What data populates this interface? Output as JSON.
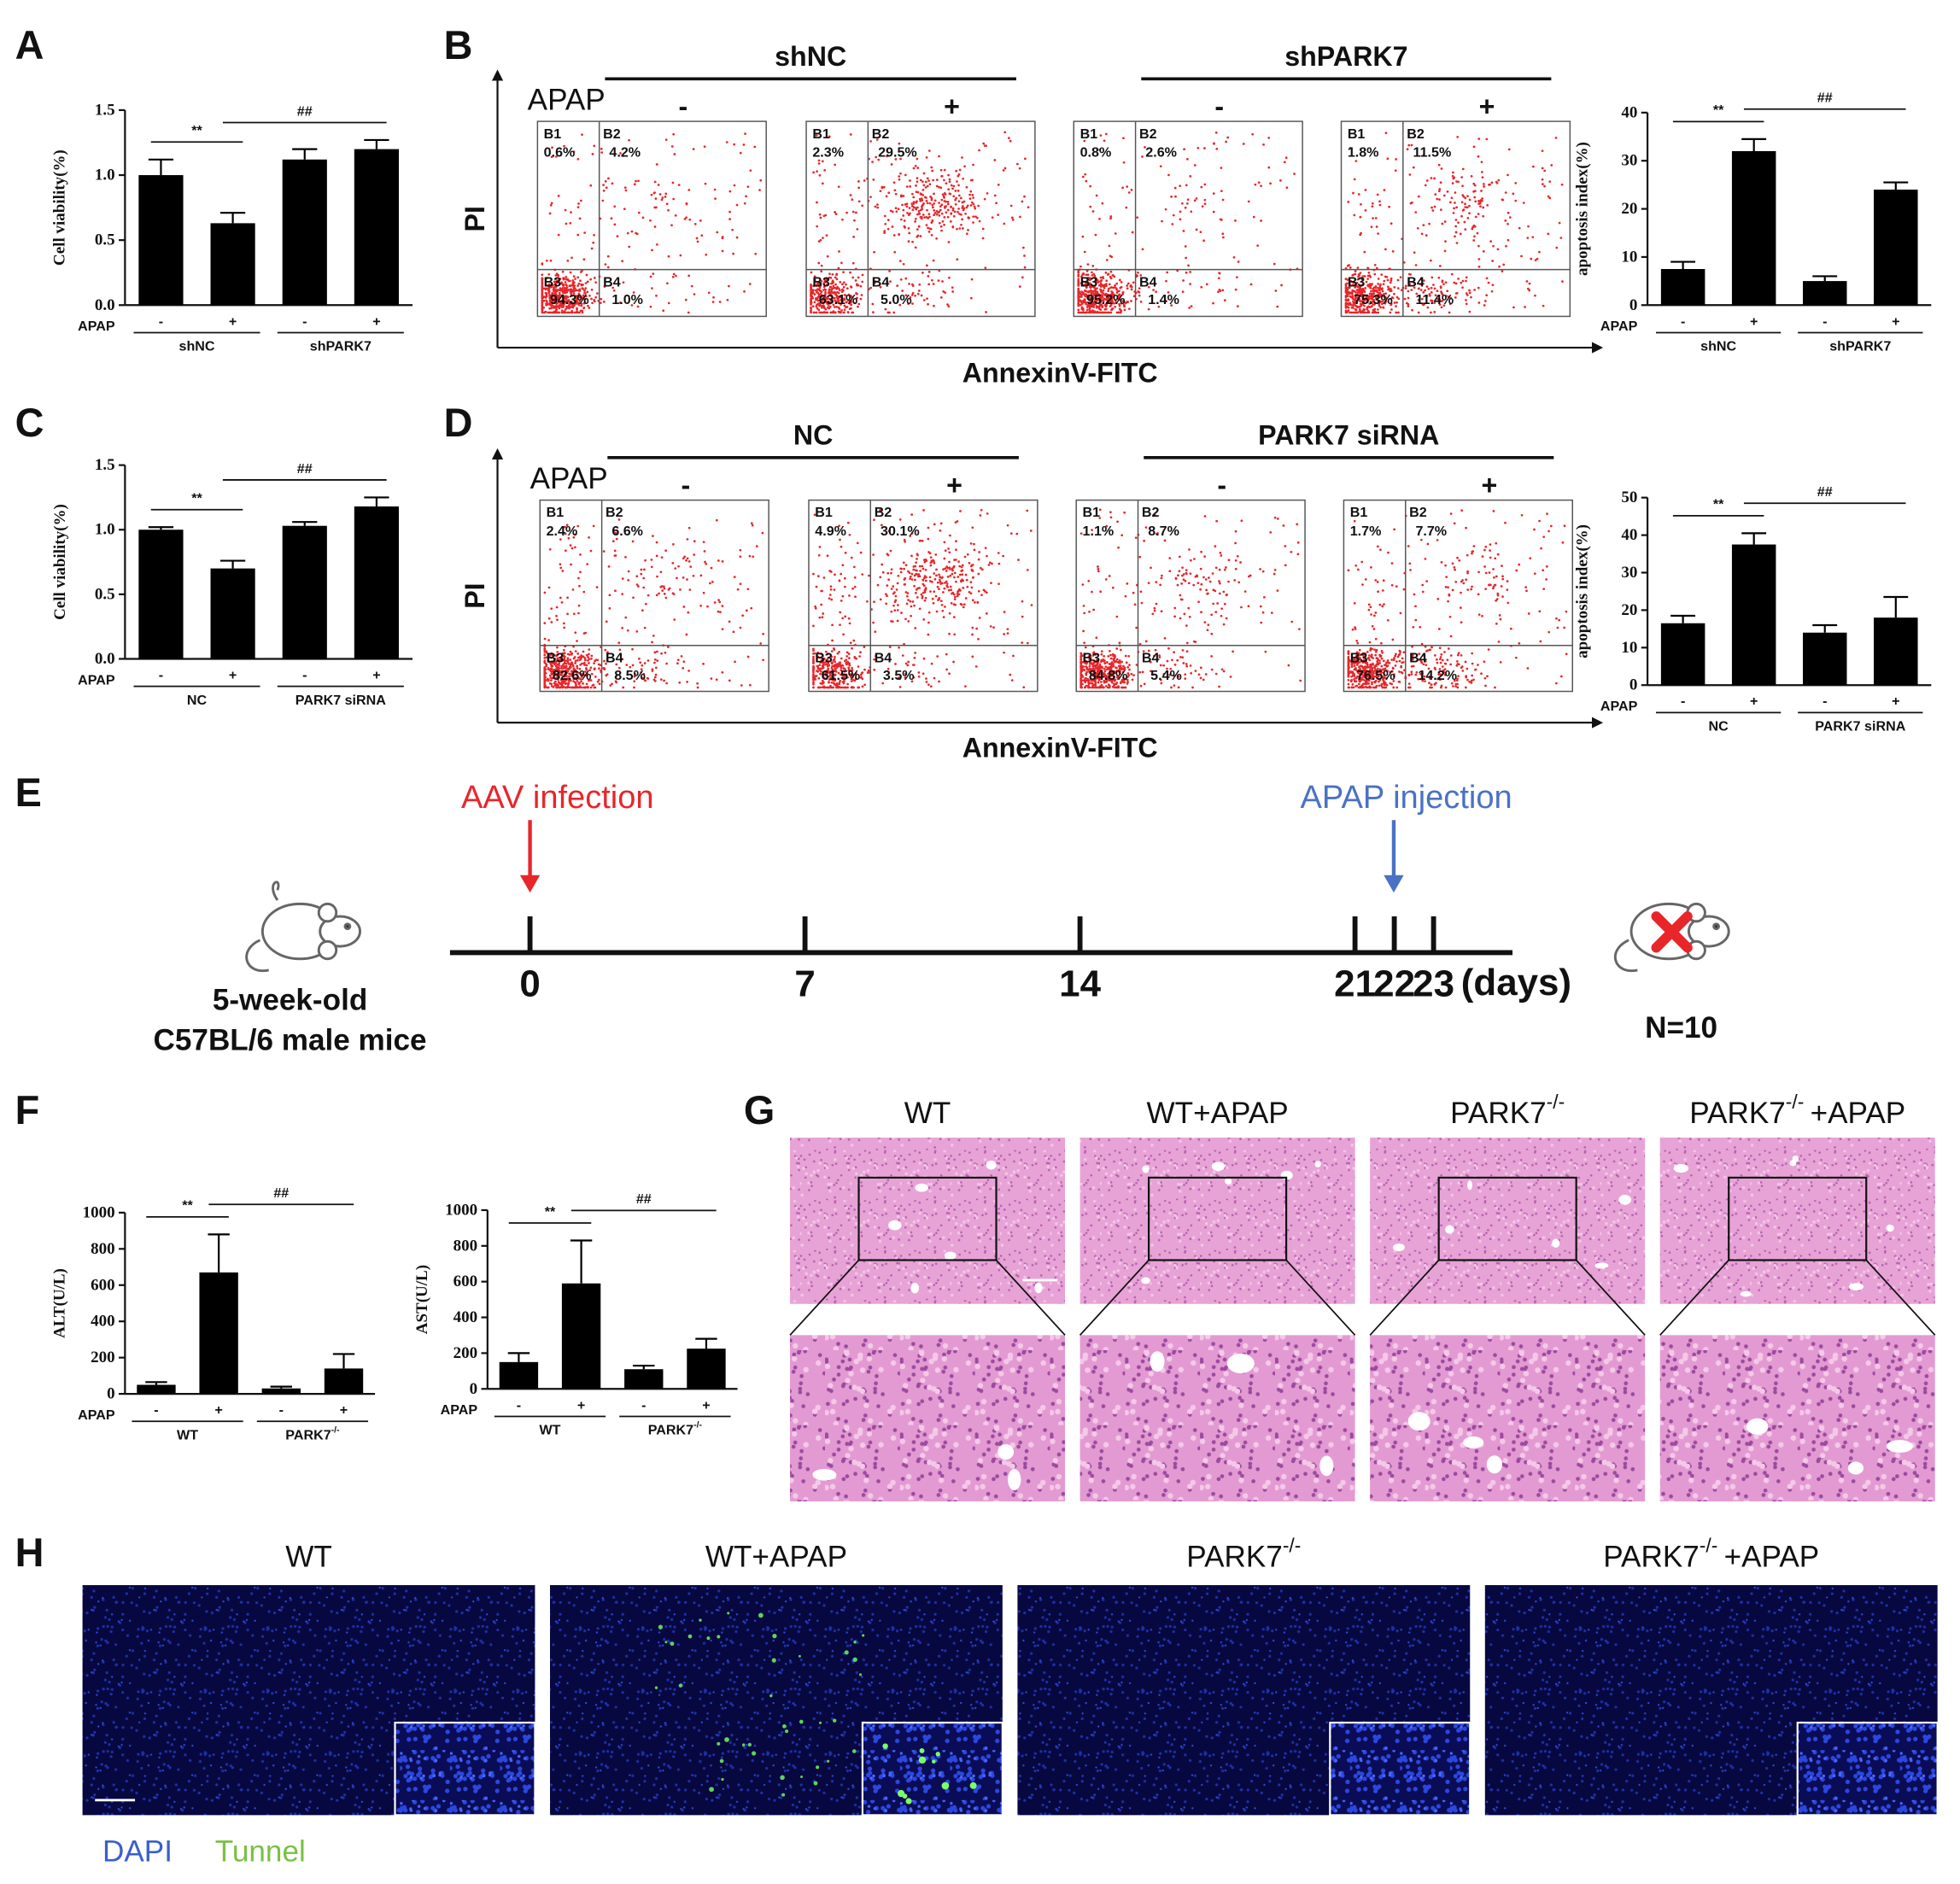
{
  "panel_labels": [
    "A",
    "B",
    "C",
    "D",
    "E",
    "F",
    "G",
    "H"
  ],
  "chart_data": [
    {
      "type": "bar",
      "ylabel": "Cell viability(%)",
      "row_label": "APAP",
      "categories": [
        "-",
        "+",
        "-",
        "+"
      ],
      "groups": [
        {
          "name": "shNC"
        },
        {
          "name": "shPARK7"
        }
      ],
      "values": [
        1.0,
        0.63,
        1.12,
        1.2
      ],
      "errors": [
        0.12,
        0.08,
        0.08,
        0.07
      ],
      "color": "#000000",
      "ylim": [
        0,
        1.5
      ],
      "yticks": [
        {
          "value": 0,
          "label": "0.0"
        },
        {
          "value": 0.5,
          "label": "0.5"
        },
        {
          "value": 1,
          "label": "1.0"
        },
        {
          "value": 1.5,
          "label": "1.5"
        }
      ],
      "annotations": [
        "**",
        "##"
      ]
    },
    {
      "type": "bar",
      "ylabel": "apoptosis index(%)",
      "row_label": "APAP",
      "categories": [
        "-",
        "+",
        "-",
        "+"
      ],
      "groups": [
        {
          "name": "shNC"
        },
        {
          "name": "shPARK7"
        }
      ],
      "values": [
        7.5,
        32,
        5,
        24
      ],
      "errors": [
        1.5,
        2.5,
        1,
        1.5
      ],
      "color": "#000000",
      "ylim": [
        0,
        40
      ],
      "yticks": [
        0,
        10,
        20,
        30,
        40
      ],
      "annotations": [
        "**",
        "##"
      ]
    },
    {
      "type": "bar",
      "ylabel": "Cell viability(%)",
      "row_label": "APAP",
      "categories": [
        "-",
        "+",
        "-",
        "+"
      ],
      "groups": [
        {
          "name": "NC"
        },
        {
          "name": "PARK7 siRNA"
        }
      ],
      "values": [
        1.0,
        0.7,
        1.03,
        1.18
      ],
      "errors": [
        0.02,
        0.06,
        0.03,
        0.07
      ],
      "color": "#000000",
      "ylim": [
        0,
        1.5
      ],
      "yticks": [
        {
          "value": 0,
          "label": "0.0"
        },
        {
          "value": 0.5,
          "label": "0.5"
        },
        {
          "value": 1,
          "label": "1.0"
        },
        {
          "value": 1.5,
          "label": "1.5"
        }
      ],
      "annotations": [
        "**",
        "##"
      ]
    },
    {
      "type": "bar",
      "ylabel": "apoptosis index(%)",
      "row_label": "APAP",
      "categories": [
        "-",
        "+",
        "-",
        "+"
      ],
      "groups": [
        {
          "name": "NC"
        },
        {
          "name": "PARK7 siRNA"
        }
      ],
      "values": [
        16.5,
        37.5,
        14,
        18
      ],
      "errors": [
        2,
        3,
        2,
        5.5
      ],
      "color": "#000000",
      "ylim": [
        0,
        50
      ],
      "yticks": [
        0,
        10,
        20,
        30,
        40,
        50
      ],
      "annotations": [
        "**",
        "##"
      ]
    },
    {
      "type": "bar",
      "ylabel": "ALT(U/L)",
      "row_label": "APAP",
      "categories": [
        "-",
        "+",
        "-",
        "+"
      ],
      "groups": [
        {
          "name": "WT"
        },
        {
          "name": "PARK7",
          "sup": "-/-"
        }
      ],
      "values": [
        50,
        670,
        30,
        140
      ],
      "errors": [
        15,
        210,
        10,
        80
      ],
      "color": "#000000",
      "ylim": [
        0,
        1000
      ],
      "yticks": [
        0,
        200,
        400,
        600,
        800,
        1000
      ],
      "annotations": [
        "**",
        "##"
      ]
    },
    {
      "type": "bar",
      "ylabel": "AST(U/L)",
      "row_label": "APAP",
      "categories": [
        "-",
        "+",
        "-",
        "+"
      ],
      "groups": [
        {
          "name": "WT"
        },
        {
          "name": "PARK7",
          "sup": "-/-"
        }
      ],
      "values": [
        150,
        590,
        110,
        225
      ],
      "errors": [
        50,
        240,
        20,
        55
      ],
      "color": "#000000",
      "ylim": [
        0,
        1000
      ],
      "yticks": [
        0,
        200,
        400,
        600,
        800,
        1000
      ],
      "annotations": [
        "**",
        "##"
      ]
    }
  ],
  "flow": [
    {
      "groups": [
        {
          "name": "shNC"
        },
        {
          "name": "shPARK7"
        }
      ],
      "row_label": "APAP",
      "treatments": [
        "-",
        "+",
        "-",
        "+"
      ],
      "y_label": "PI",
      "x_label": "AnnexinV-FITC",
      "quadrants": [
        "B1",
        "B2",
        "B3",
        "B4"
      ],
      "plots": [
        [
          "0.6%",
          "4.2%",
          "94.3%",
          "1.0%"
        ],
        [
          "2.3%",
          "29.5%",
          "63.1%",
          "5.0%"
        ],
        [
          "0.8%",
          "2.6%",
          "95.2%",
          "1.4%"
        ],
        [
          "1.8%",
          "11.5%",
          "75.3%",
          "11.4%"
        ]
      ]
    },
    {
      "groups": [
        {
          "name": "NC"
        },
        {
          "name": "PARK7  siRNA"
        }
      ],
      "row_label": "APAP",
      "treatments": [
        "-",
        "+",
        "-",
        "+"
      ],
      "y_label": "PI",
      "x_label": "AnnexinV-FITC",
      "quadrants": [
        "B1",
        "B2",
        "B3",
        "B4"
      ],
      "plots": [
        [
          "2.4%",
          "6.6%",
          "82.6%",
          "8.5%"
        ],
        [
          "4.9%",
          "30.1%",
          "61.5%",
          "3.5%"
        ],
        [
          "1.1%",
          "8.7%",
          "84.8%",
          "5.4%"
        ],
        [
          "1.7%",
          "7.7%",
          "76.5%",
          "14.2%"
        ]
      ]
    }
  ],
  "timeline": {
    "start_event": "AAV infection",
    "treatment_event": "APAP injection",
    "days": [
      0,
      7,
      14,
      21,
      22,
      23
    ],
    "unit": "(days)",
    "age": "5-week-old",
    "strain": "C57BL/6  male mice",
    "n": "N=10"
  },
  "histology": {
    "titles": [
      {
        "name": "WT"
      },
      {
        "name": "WT+APAP"
      },
      {
        "name": "PARK7",
        "sup": "-/-"
      },
      {
        "name": "PARK7",
        "sup": "-/-",
        "suffix": "+APAP"
      }
    ]
  },
  "fluorescence": {
    "titles": [
      {
        "name": "WT"
      },
      {
        "name": "WT+APAP"
      },
      {
        "name": "PARK7",
        "sup": "-/-"
      },
      {
        "name": "PARK7",
        "sup": "-/-",
        "suffix": "+APAP"
      }
    ],
    "legend": [
      "DAPI",
      "Tunnel"
    ]
  }
}
